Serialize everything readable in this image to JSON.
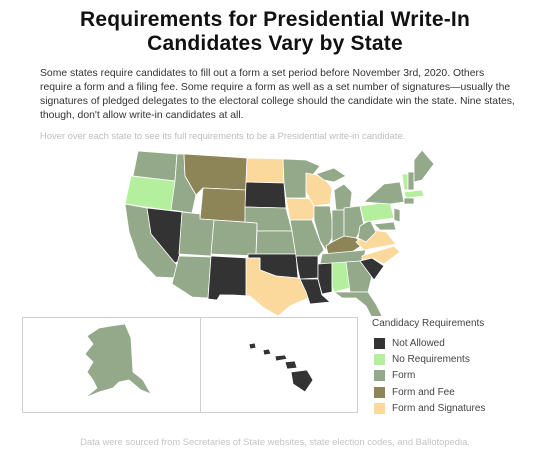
{
  "title_lines": [
    "Requirements for Presidential Write-In",
    "Candidates Vary by State"
  ],
  "description": "Some states require candidates to fill out a form a set period before November 3rd, 2020. Others require a form and a filing fee. Some require a form as well as a set number of signatures—usually the signatures of pledged delegates to the electoral college should the candidate win the state. Nine states, though, don't allow write-in candidates at all.",
  "hover_hint": "Hover over each state to see its full requirements to be a Presidential write-in candidate.",
  "source": "Data were sourced from Secretaries of State websites, state election codes, and Ballotopedia.",
  "legend": {
    "title": "Candidacy Requirements",
    "items": [
      {
        "label": "Not Allowed",
        "color": "#333333"
      },
      {
        "label": "No Requirements",
        "color": "#b3ef9c"
      },
      {
        "label": "Form",
        "color": "#93a98a"
      },
      {
        "label": "Form and Fee",
        "color": "#8d8457"
      },
      {
        "label": "Form and Signatures",
        "color": "#fbd89b"
      }
    ]
  }
}
